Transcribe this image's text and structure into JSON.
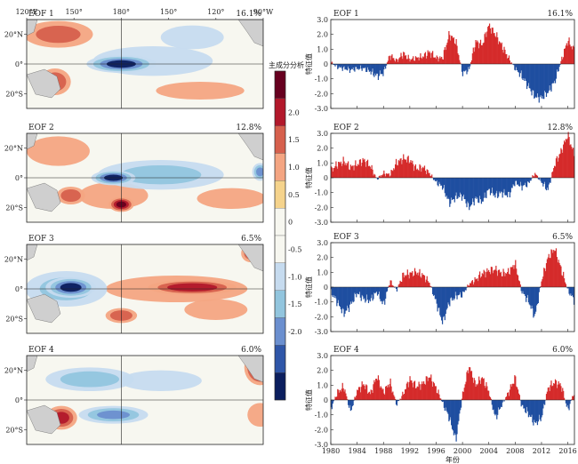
{
  "chart_data": [
    {
      "type": "heatmap",
      "panel": "map",
      "label": "EOF 1",
      "variance": "16.1%",
      "top_ticks": [
        "120°E",
        "150°",
        "180°",
        "150°",
        "120°",
        "90°W"
      ],
      "lat_ticks": [
        "20°N",
        "0°",
        "20°S"
      ],
      "patterns": [
        {
          "lon": 180,
          "lat": 0,
          "v": -2.2,
          "rx": 22,
          "ry": 6
        },
        {
          "lon": 200,
          "lat": 2,
          "v": -0.9,
          "rx": 38,
          "ry": 10
        },
        {
          "lon": 225,
          "lat": 18,
          "v": -0.7,
          "rx": 20,
          "ry": 8
        },
        {
          "lon": 140,
          "lat": 20,
          "v": 1.0,
          "rx": 22,
          "ry": 9
        },
        {
          "lon": 230,
          "lat": -18,
          "v": 0.9,
          "rx": 28,
          "ry": 6
        },
        {
          "lon": 138,
          "lat": -12,
          "v": 1.3,
          "rx": 10,
          "ry": 9
        },
        {
          "lon": 266,
          "lat": 22,
          "v": -1.2,
          "rx": 5,
          "ry": 6
        }
      ]
    },
    {
      "type": "heatmap",
      "panel": "map",
      "label": "EOF 2",
      "variance": "12.8%",
      "lat_ticks": [
        "20°N",
        "0°",
        "20°S"
      ],
      "patterns": [
        {
          "lon": 175,
          "lat": 0,
          "v": -2.2,
          "rx": 14,
          "ry": 5
        },
        {
          "lon": 205,
          "lat": 2,
          "v": -1.0,
          "rx": 40,
          "ry": 10
        },
        {
          "lon": 180,
          "lat": -18,
          "v": 2.1,
          "rx": 8,
          "ry": 5
        },
        {
          "lon": 175,
          "lat": -12,
          "v": 0.8,
          "rx": 22,
          "ry": 9
        },
        {
          "lon": 148,
          "lat": -12,
          "v": 1.3,
          "rx": 9,
          "ry": 6
        },
        {
          "lon": 140,
          "lat": 18,
          "v": 0.8,
          "rx": 20,
          "ry": 10
        },
        {
          "lon": 250,
          "lat": -14,
          "v": 0.7,
          "rx": 22,
          "ry": 7
        },
        {
          "lon": 268,
          "lat": 4,
          "v": -1.6,
          "rx": 5,
          "ry": 6
        }
      ]
    },
    {
      "type": "heatmap",
      "panel": "map",
      "label": "EOF 3",
      "variance": "6.5%",
      "lat_ticks": [
        "20°N",
        "0°",
        "20°S"
      ],
      "patterns": [
        {
          "lon": 148,
          "lat": 1,
          "v": -2.2,
          "rx": 16,
          "ry": 7
        },
        {
          "lon": 145,
          "lat": 0,
          "v": -1.0,
          "rx": 26,
          "ry": 12
        },
        {
          "lon": 225,
          "lat": 1,
          "v": 1.9,
          "rx": 28,
          "ry": 5
        },
        {
          "lon": 215,
          "lat": 0,
          "v": 0.8,
          "rx": 45,
          "ry": 9
        },
        {
          "lon": 180,
          "lat": -18,
          "v": 1.3,
          "rx": 10,
          "ry": 5
        },
        {
          "lon": 240,
          "lat": -14,
          "v": 0.6,
          "rx": 20,
          "ry": 7
        },
        {
          "lon": 262,
          "lat": 24,
          "v": 1.2,
          "rx": 6,
          "ry": 6
        }
      ]
    },
    {
      "type": "heatmap",
      "panel": "map",
      "label": "EOF 4",
      "variance": "6.0%",
      "lat_ticks": [
        "20°N",
        "0°",
        "20°S"
      ],
      "patterns": [
        {
          "lon": 160,
          "lat": 14,
          "v": -1.1,
          "rx": 28,
          "ry": 8
        },
        {
          "lon": 205,
          "lat": 13,
          "v": -0.9,
          "rx": 26,
          "ry": 7
        },
        {
          "lon": 175,
          "lat": -10,
          "v": -1.5,
          "rx": 22,
          "ry": 6
        },
        {
          "lon": 142,
          "lat": -12,
          "v": 1.6,
          "rx": 10,
          "ry": 8
        },
        {
          "lon": 268,
          "lat": 22,
          "v": 2.2,
          "rx": 10,
          "ry": 12
        },
        {
          "lon": 268,
          "lat": -10,
          "v": 0.7,
          "rx": 8,
          "ry": 8
        }
      ]
    },
    {
      "type": "area",
      "panel": "ts",
      "label": "EOF 1",
      "variance": "16.1%",
      "ylabel": "特征值",
      "ylim": [
        -3.0,
        3.0
      ],
      "yticks": [
        "3.0",
        "2.0",
        "1.0",
        "0",
        "-1.0",
        "-2.0",
        "-3.0"
      ],
      "x": [
        1980,
        1981,
        1982,
        1983,
        1984,
        1985,
        1986,
        1987,
        1988,
        1989,
        1990,
        1991,
        1992,
        1993,
        1994,
        1995,
        1996,
        1997,
        1998,
        1999,
        2000,
        2001,
        2002,
        2003,
        2004,
        2005,
        2006,
        2007,
        2008,
        2009,
        2010,
        2011,
        2012,
        2013,
        2014,
        2015,
        2016,
        2017
      ],
      "values": [
        0.1,
        -0.2,
        -0.3,
        -0.4,
        -0.3,
        -0.3,
        -0.5,
        -0.8,
        -0.6,
        0.6,
        0.2,
        0.7,
        0.3,
        0.4,
        0.5,
        0.8,
        0.4,
        0.4,
        2.0,
        1.5,
        -0.6,
        -0.4,
        1.5,
        1.3,
        2.6,
        2.0,
        1.2,
        0.4,
        -0.3,
        -0.8,
        -1.5,
        -2.2,
        -2.3,
        -1.9,
        -1.2,
        0.2,
        1.6,
        0.9
      ]
    },
    {
      "type": "area",
      "panel": "ts",
      "label": "EOF 2",
      "variance": "12.8%",
      "ylabel": "特征值",
      "ylim": [
        -3.0,
        3.0
      ],
      "yticks": [
        "3.0",
        "2.0",
        "1.0",
        "0",
        "-1.0",
        "-2.0",
        "-3.0"
      ],
      "x": [
        1980,
        1981,
        1982,
        1983,
        1984,
        1985,
        1986,
        1987,
        1988,
        1989,
        1990,
        1991,
        1992,
        1993,
        1994,
        1995,
        1996,
        1997,
        1998,
        1999,
        2000,
        2001,
        2002,
        2003,
        2004,
        2005,
        2006,
        2007,
        2008,
        2009,
        2010,
        2011,
        2012,
        2013,
        2014,
        2015,
        2016,
        2017
      ],
      "values": [
        0.5,
        0.9,
        1.1,
        0.7,
        0.9,
        1.2,
        0.8,
        -0.1,
        0.3,
        0.2,
        1.0,
        1.3,
        1.2,
        0.6,
        0.7,
        0.3,
        -0.3,
        -0.6,
        -1.7,
        -1.3,
        -1.2,
        -2.0,
        -1.4,
        -1.6,
        -0.8,
        -1.2,
        -1.0,
        -1.2,
        -0.3,
        -0.6,
        -0.4,
        0.3,
        -0.3,
        -0.8,
        0.9,
        1.8,
        2.9,
        1.5
      ]
    },
    {
      "type": "area",
      "panel": "ts",
      "label": "EOF 3",
      "variance": "6.5%",
      "ylabel": "特征值",
      "ylim": [
        -3.0,
        3.0
      ],
      "yticks": [
        "3.0",
        "2.0",
        "1.0",
        "0",
        "-1.0",
        "-2.0",
        "-3.0"
      ],
      "x": [
        1980,
        1981,
        1982,
        1983,
        1984,
        1985,
        1986,
        1987,
        1988,
        1989,
        1990,
        1991,
        1992,
        1993,
        1994,
        1995,
        1996,
        1997,
        1998,
        1999,
        2000,
        2001,
        2002,
        2003,
        2004,
        2005,
        2006,
        2007,
        2008,
        2009,
        2010,
        2011,
        2012,
        2013,
        2014,
        2015,
        2016,
        2017
      ],
      "values": [
        -0.3,
        -1.0,
        -1.8,
        -1.2,
        -0.4,
        -0.8,
        -0.9,
        -0.3,
        -1.2,
        0.4,
        -0.2,
        0.8,
        0.9,
        1.0,
        0.8,
        0.3,
        -1.0,
        -2.4,
        -1.0,
        -0.6,
        -0.5,
        0.2,
        0.5,
        0.9,
        1.1,
        1.2,
        0.9,
        1.0,
        1.6,
        -0.3,
        -0.9,
        -2.0,
        0.4,
        2.0,
        2.6,
        1.2,
        -0.2,
        -0.9
      ]
    },
    {
      "type": "area",
      "panel": "ts",
      "label": "EOF 4",
      "variance": "6.0%",
      "ylabel": "特征值",
      "ylim": [
        -3.0,
        3.0
      ],
      "yticks": [
        "3.0",
        "2.0",
        "1.0",
        "0",
        "-1.0",
        "-2.0",
        "-3.0"
      ],
      "xticks": [
        "1980",
        "1984",
        "1988",
        "1992",
        "1996",
        "2000",
        "2004",
        "2008",
        "2012",
        "2016"
      ],
      "xlabel": "年份",
      "x": [
        1980,
        1981,
        1982,
        1983,
        1984,
        1985,
        1986,
        1987,
        1988,
        1989,
        1990,
        1991,
        1992,
        1993,
        1994,
        1995,
        1996,
        1997,
        1998,
        1999,
        2000,
        2001,
        2002,
        2003,
        2004,
        2005,
        2006,
        2007,
        2008,
        2009,
        2010,
        2011,
        2012,
        2013,
        2014,
        2015,
        2016,
        2017
      ],
      "values": [
        -0.6,
        0.5,
        0.9,
        -0.8,
        0.6,
        1.1,
        0.4,
        1.6,
        0.5,
        1.2,
        -0.3,
        0.4,
        1.4,
        0.9,
        1.1,
        1.6,
        0.8,
        -0.2,
        -1.2,
        -2.7,
        0.3,
        2.3,
        1.0,
        1.5,
        0.6,
        -1.2,
        -0.3,
        0.5,
        1.5,
        -0.4,
        -0.9,
        -1.6,
        -1.2,
        0.8,
        1.2,
        1.0,
        -0.7,
        0.6
      ]
    }
  ],
  "colorbar": {
    "title": "主成分分析",
    "ticks": [
      "2.0",
      "1.5",
      "1.0",
      "0.5",
      "0",
      "-0.5",
      "-1.0",
      "-1.5",
      "-2.0"
    ],
    "colors": [
      "#67001f",
      "#b2182b",
      "#d6604d",
      "#f4a582",
      "#f5d38c",
      "#f7f7f0",
      "#f7f7f0",
      "#c6dbef",
      "#92c5de",
      "#6b8fcf",
      "#2f56a8",
      "#0b1e5e"
    ]
  },
  "colors": {
    "positive": "#d52b2b",
    "negative": "#1f4ea0",
    "land": "#cfcfcf"
  }
}
